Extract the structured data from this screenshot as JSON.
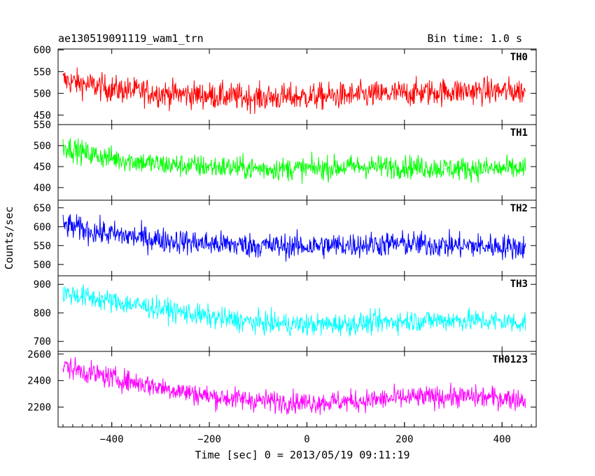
{
  "header": {
    "title": "ae130519091119_wam1_trn",
    "bin_time": "Bin time: 1.0 s"
  },
  "axes": {
    "xlabel": "Time [sec] 0 = 2013/05/19 09:11:19",
    "ylabel": "Counts/sec",
    "xlim": [
      -510,
      470
    ],
    "xticks": [
      -400,
      -200,
      0,
      200,
      400
    ]
  },
  "chart_data": {
    "type": "line",
    "x_range": [
      -500,
      448
    ],
    "bin_time_s": 1.0,
    "panels": [
      {
        "name": "TH0",
        "color": "#ff0000",
        "ylim": [
          428,
          602
        ],
        "yticks": [
          450,
          500,
          550,
          600
        ],
        "trend_x": [
          -500,
          -450,
          -400,
          -300,
          -200,
          -100,
          0,
          100,
          200,
          300,
          400,
          448
        ],
        "trend_y": [
          530,
          520,
          510,
          500,
          495,
          490,
          492,
          495,
          500,
          505,
          505,
          505
        ],
        "noise_amplitude": 28
      },
      {
        "name": "TH1",
        "color": "#00ff00",
        "ylim": [
          370,
          550
        ],
        "yticks": [
          400,
          450,
          500,
          550
        ],
        "trend_x": [
          -500,
          -450,
          -400,
          -300,
          -200,
          -100,
          0,
          100,
          200,
          300,
          400,
          448
        ],
        "trend_y": [
          500,
          480,
          470,
          455,
          450,
          445,
          445,
          450,
          450,
          445,
          445,
          445
        ],
        "noise_amplitude": 25
      },
      {
        "name": "TH2",
        "color": "#0000ff",
        "ylim": [
          470,
          670
        ],
        "yticks": [
          500,
          550,
          600,
          650
        ],
        "trend_x": [
          -500,
          -450,
          -400,
          -300,
          -200,
          -100,
          0,
          100,
          200,
          300,
          400,
          448
        ],
        "trend_y": [
          605,
          590,
          580,
          565,
          555,
          550,
          548,
          552,
          555,
          550,
          548,
          545
        ],
        "noise_amplitude": 30
      },
      {
        "name": "TH3",
        "color": "#00ffff",
        "ylim": [
          665,
          930
        ],
        "yticks": [
          700,
          800,
          900
        ],
        "trend_x": [
          -500,
          -450,
          -400,
          -300,
          -200,
          -100,
          0,
          100,
          200,
          300,
          400,
          448
        ],
        "trend_y": [
          870,
          855,
          840,
          815,
          785,
          765,
          758,
          762,
          772,
          775,
          770,
          765
        ],
        "noise_amplitude": 35
      },
      {
        "name": "TH0123",
        "color": "#ff00ff",
        "ylim": [
          2050,
          2620
        ],
        "yticks": [
          2200,
          2400,
          2600
        ],
        "trend_x": [
          -500,
          -450,
          -400,
          -300,
          -200,
          -100,
          0,
          100,
          200,
          300,
          400,
          448
        ],
        "trend_y": [
          2510,
          2460,
          2420,
          2350,
          2280,
          2250,
          2235,
          2245,
          2270,
          2280,
          2270,
          2255
        ],
        "noise_amplitude": 75
      }
    ]
  }
}
